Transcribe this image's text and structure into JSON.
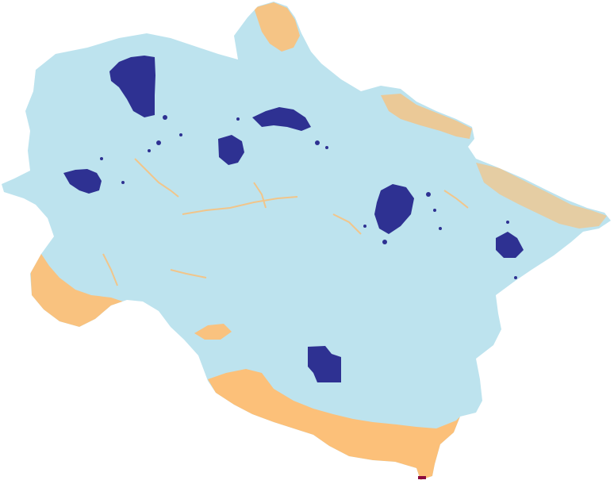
{
  "map": {
    "colors": {
      "land": "#bde3ee",
      "lowland": "#ffbe72",
      "protected": "#2e3192",
      "marker": "#8b0a3d",
      "background": "#ffffff"
    },
    "layers": [
      "region-boundary",
      "lowland-fringe",
      "dark-patches",
      "outlet-marker"
    ]
  }
}
